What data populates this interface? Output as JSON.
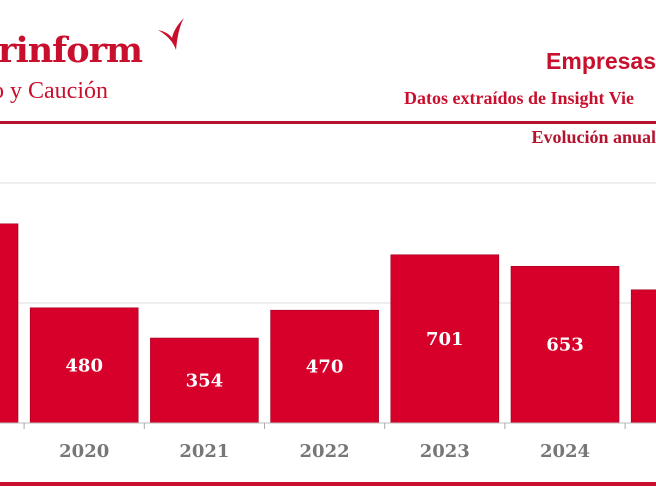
{
  "header": {
    "logo_text": "rinform",
    "logo_subtext": "o y Caución",
    "title": "Empresas",
    "subtitle": "Datos extraídos de Insight Vie",
    "section": "Evolución anual"
  },
  "colors": {
    "brand": "#c8102e",
    "bar": "#d7002a",
    "axis_label": "#777777",
    "grid": "#dddddd"
  },
  "chart_data": {
    "type": "bar",
    "categories": [
      "",
      "2020",
      "2021",
      "2022",
      "2023",
      "2024",
      ""
    ],
    "values": [
      830,
      480,
      354,
      470,
      701,
      653,
      555
    ],
    "value_labels": [
      "",
      "480",
      "354",
      "470",
      "701",
      "653",
      ""
    ],
    "ylim": [
      0,
      1000
    ],
    "gridlines": [
      500,
      1000
    ],
    "grid": true,
    "title": "",
    "xlabel": "",
    "ylabel": ""
  }
}
